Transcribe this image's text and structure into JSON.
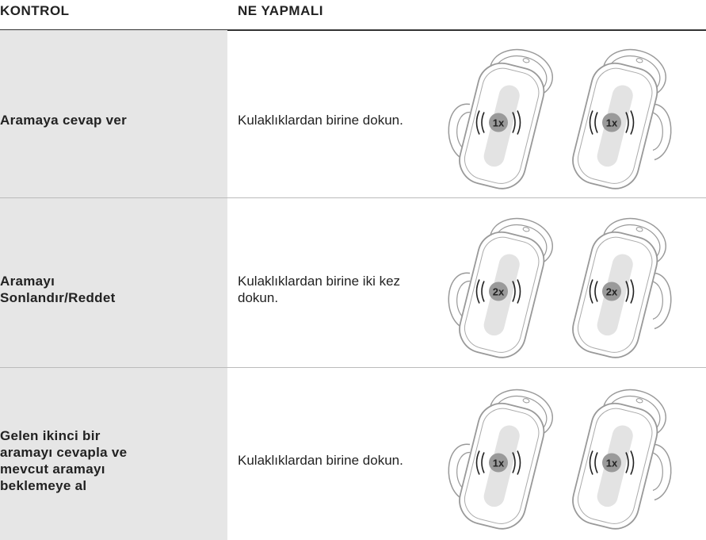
{
  "header": {
    "columns": [
      "KONTROL",
      "NE YAPMALI"
    ]
  },
  "table": {
    "rows": [
      {
        "control": "Aramaya cevap ver",
        "action": "Kulaklıklardan birine dokun.",
        "tap": "1x"
      },
      {
        "control": "Aramayı Sonlandır/Reddet",
        "action": "Kulaklıklardan birine iki kez dokun.",
        "tap": "2x"
      },
      {
        "control": "Gelen ikinci bir aramayı cevapla ve mevcut aramayı beklemeye al",
        "action": "Kulaklıklardan birine dokun.",
        "tap": "1x"
      }
    ]
  }
}
